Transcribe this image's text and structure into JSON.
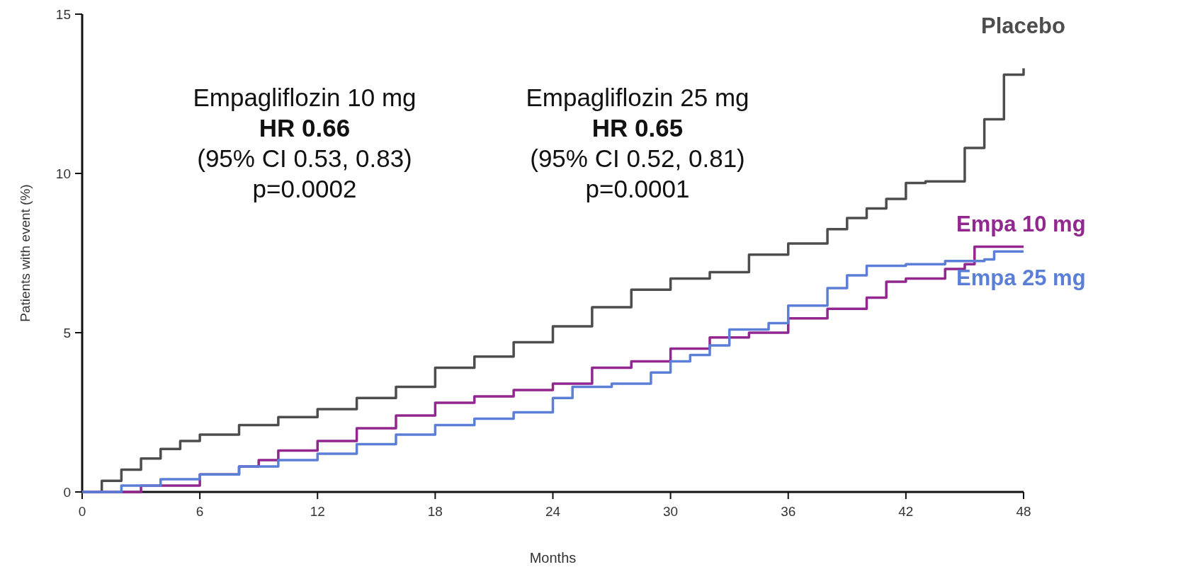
{
  "chart_data": {
    "type": "step",
    "xlabel": "Months",
    "ylabel": "Patients with event (%)",
    "xlim": [
      0,
      48
    ],
    "xticks": [
      0,
      6,
      12,
      18,
      24,
      30,
      36,
      42,
      48
    ],
    "ylim": [
      0,
      15
    ],
    "yticks": [
      0,
      5,
      10,
      15
    ],
    "grid": false,
    "legend": false,
    "annotations": [
      "Empagliflozin 10 mg\nHR 0.66\n(95% CI 0.53, 0.83)\np=0.0002",
      "Empagliflozin 25 mg\nHR 0.65\n(95% CI 0.52, 0.81)\np=0.0001"
    ],
    "series": [
      {
        "name": "Placebo",
        "color": "#4d4d4d",
        "x": [
          0,
          1,
          2,
          3,
          4,
          5,
          6,
          8,
          10,
          12,
          14,
          16,
          18,
          20,
          22,
          24,
          26,
          28,
          30,
          32,
          34,
          36,
          38,
          39,
          40,
          41,
          42,
          43,
          44,
          45,
          46,
          47,
          48
        ],
        "values": [
          0,
          0.35,
          0.7,
          1.05,
          1.35,
          1.6,
          1.8,
          2.1,
          2.35,
          2.6,
          2.95,
          3.3,
          3.9,
          4.25,
          4.7,
          5.2,
          5.8,
          6.35,
          6.7,
          6.9,
          7.45,
          7.8,
          8.25,
          8.6,
          8.9,
          9.2,
          9.7,
          9.75,
          9.75,
          10.8,
          11.7,
          13.1,
          13.3
        ]
      },
      {
        "name": "Empa 10 mg",
        "color": "#92278f",
        "x": [
          0,
          3,
          6,
          8,
          9,
          10,
          12,
          14,
          16,
          18,
          20,
          22,
          24,
          26,
          28,
          30,
          32,
          34,
          36,
          38,
          40,
          41,
          42,
          44,
          45,
          45.5,
          48
        ],
        "values": [
          0,
          0.2,
          0.55,
          0.8,
          1.0,
          1.3,
          1.6,
          2.0,
          2.4,
          2.8,
          3.0,
          3.2,
          3.4,
          3.9,
          4.1,
          4.5,
          4.85,
          5.0,
          5.45,
          5.75,
          6.1,
          6.6,
          6.7,
          7.0,
          7.15,
          7.7,
          7.7
        ]
      },
      {
        "name": "Empa 25 mg",
        "color": "#5b7fd6",
        "x": [
          0,
          2,
          4,
          6,
          8,
          10,
          12,
          14,
          16,
          18,
          20,
          22,
          24,
          25,
          27,
          29,
          30,
          31,
          32,
          33,
          35,
          36,
          38,
          39,
          40,
          42,
          44,
          46,
          46.5,
          48
        ],
        "values": [
          0,
          0.2,
          0.4,
          0.55,
          0.8,
          1.0,
          1.2,
          1.5,
          1.8,
          2.1,
          2.3,
          2.5,
          2.95,
          3.3,
          3.4,
          3.75,
          4.1,
          4.3,
          4.6,
          5.1,
          5.3,
          5.85,
          6.4,
          6.8,
          7.1,
          7.15,
          7.25,
          7.3,
          7.55,
          7.55
        ]
      }
    ]
  }
}
